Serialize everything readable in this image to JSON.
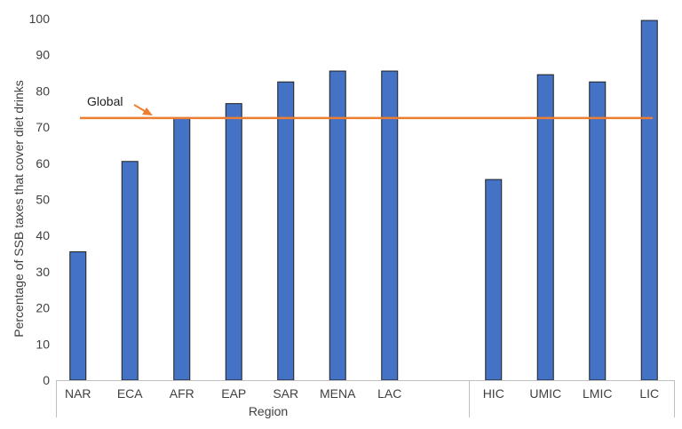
{
  "chart_data": {
    "type": "bar",
    "categories": [
      "NAR",
      "ECA",
      "AFR",
      "EAP",
      "SAR",
      "MENA",
      "LAC",
      "",
      "HIC",
      "UMIC",
      "LMIC",
      "LIC"
    ],
    "values": [
      35.5,
      60.5,
      72.5,
      76.5,
      82.5,
      85.5,
      85.5,
      null,
      55.5,
      84.5,
      82.5,
      99.5
    ],
    "title": "",
    "xlabel": "Region",
    "ylabel": "Percentage of SSB taxes that cover diet drinks",
    "ylim": [
      0,
      100
    ],
    "yticks": [
      0,
      10,
      20,
      30,
      40,
      50,
      60,
      70,
      80,
      90,
      100
    ],
    "reference_line": {
      "label": "Global",
      "value": 72.5
    },
    "grid": false,
    "legend": "none",
    "colors": {
      "bar": "#4472c4",
      "bar_stroke": "#1f1f1f",
      "reference": "#ed7d31",
      "axis": "#bfbfbf",
      "text": "#404040"
    }
  }
}
